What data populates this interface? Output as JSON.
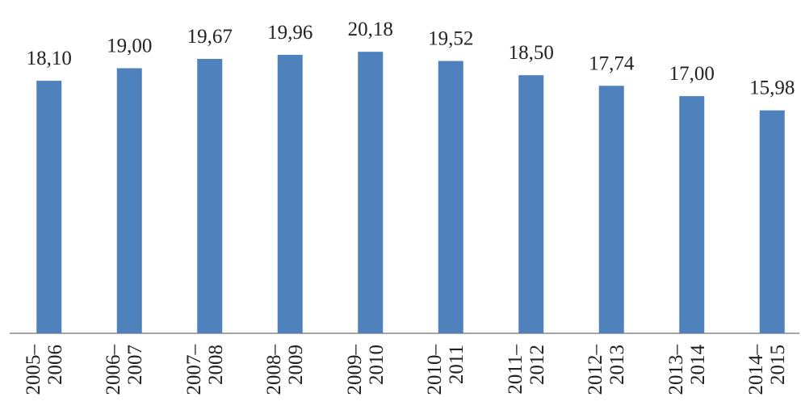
{
  "chart_data": {
    "type": "bar",
    "categories": [
      "2005– 2006",
      "2006– 2007",
      "2007– 2008",
      "2008– 2009",
      "2009– 2010",
      "2010– 2011",
      "2011– 2012",
      "2012– 2013",
      "2013– 2014",
      "2014– 2015"
    ],
    "values": [
      18.1,
      19.0,
      19.67,
      19.96,
      20.18,
      19.52,
      18.5,
      17.74,
      17.0,
      15.98
    ],
    "value_labels": [
      "18,10",
      "19,00",
      "19,67",
      "19,96",
      "20,18",
      "19,52",
      "18,50",
      "17,74",
      "17,00",
      "15,98"
    ],
    "color": "#4f81bd",
    "ylim": [
      0,
      23.6
    ]
  }
}
